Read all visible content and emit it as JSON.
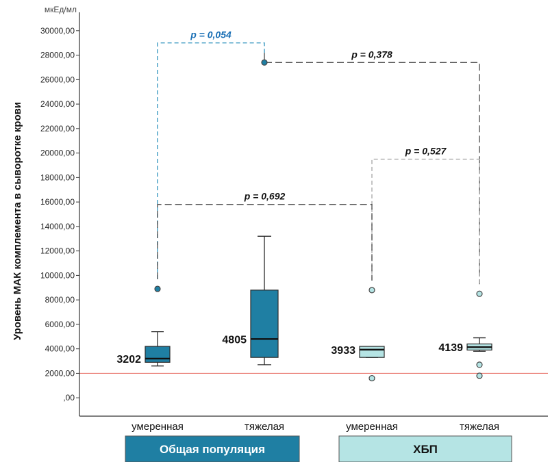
{
  "chart_data": {
    "type": "box",
    "unit": "мкЕд/мл",
    "ylabel": "Уровень МАК комплемента в сыворотке крови",
    "ylim": [
      -1500,
      31500
    ],
    "yticks": [
      0,
      2000,
      4000,
      6000,
      8000,
      10000,
      12000,
      14000,
      16000,
      18000,
      20000,
      22000,
      24000,
      26000,
      28000,
      30000
    ],
    "ytick_labels": [
      ",00",
      "2000,00",
      "4000,00",
      "6000,00",
      "8000,00",
      "10000,00",
      "12000,00",
      "14000,00",
      "16000,00",
      "18000,00",
      "20000,00",
      "22000,00",
      "24000,00",
      "26000,00",
      "28000,00",
      "30000,00"
    ],
    "reference_line": {
      "y": 2000,
      "color": "#e8736b"
    },
    "boxes": [
      {
        "group": "Общая популяция",
        "category": "умеренная",
        "whisker_low": 2600,
        "q1": 2900,
        "median": 3202,
        "q3": 4200,
        "whisker_high": 5400,
        "outliers": [
          8900
        ],
        "median_label": "3202",
        "fill": "#1f7fa3"
      },
      {
        "group": "Общая популяция",
        "category": "тяжелая",
        "whisker_low": 2700,
        "q1": 3300,
        "median": 4805,
        "q3": 8800,
        "whisker_high": 13200,
        "outliers": [
          27400
        ],
        "median_label": "4805",
        "fill": "#1f7fa3"
      },
      {
        "group": "ХБП",
        "category": "умеренная",
        "whisker_low": 3300,
        "q1": 3300,
        "median": 3933,
        "q3": 4200,
        "whisker_high": 4200,
        "outliers": [
          8800,
          1600
        ],
        "median_label": "3933",
        "fill": "#b5e4e4"
      },
      {
        "group": "ХБП",
        "category": "тяжелая",
        "whisker_low": 3800,
        "q1": 3900,
        "median": 4139,
        "q3": 4400,
        "whisker_high": 4900,
        "outliers": [
          8500,
          2700,
          1800
        ],
        "median_label": "4139",
        "fill": "#b5e4e4"
      }
    ],
    "comparisons": [
      {
        "from": 0,
        "to": 1,
        "y": 29000,
        "label": "p = 0,054",
        "color": "#3d9ac2",
        "dash": "6,4",
        "label_color": "#1a6fb5"
      },
      {
        "from": 1,
        "to": 3,
        "y": 27400,
        "label": "p = 0,378",
        "color": "#555555",
        "dash": "10,5",
        "label_color": "#111111"
      },
      {
        "from": 2,
        "to": 3,
        "y": 19500,
        "label": "p = 0,527",
        "color": "#aaaaaa",
        "dash": "6,4",
        "label_color": "#111111"
      },
      {
        "from": 0,
        "to": 2,
        "y": 15800,
        "label": "p = 0,692",
        "color": "#555555",
        "dash": "10,5",
        "label_color": "#111111"
      }
    ],
    "groups": [
      {
        "label": "Общая популяция",
        "fill": "#1f7fa3",
        "text_color": "#ffffff"
      },
      {
        "label": "ХБП",
        "fill": "#b5e4e4",
        "text_color": "#111111"
      }
    ]
  }
}
